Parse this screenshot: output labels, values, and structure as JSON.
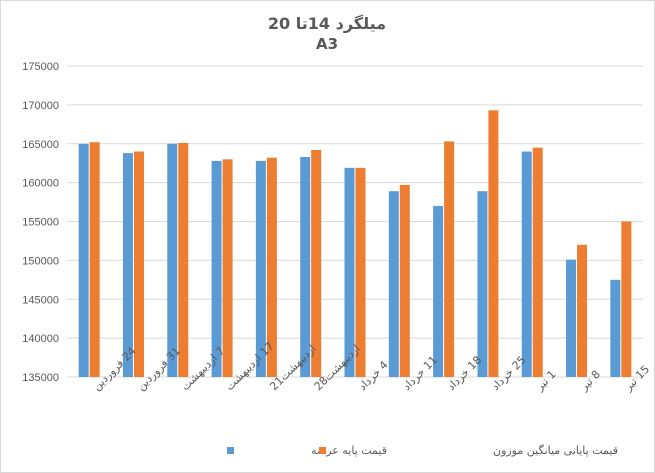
{
  "chart_data": {
    "type": "bar",
    "title": "میلگرد 14تا 20",
    "subtitle": "A3",
    "categories": [
      "24 فروردین",
      "31 فروردین",
      "7 اردیبهشت",
      "17 اردیبهشت",
      "اردیبهشت21",
      "اردیبهشت28",
      "4 خرداد",
      "11 خرداد",
      "18 خرداد",
      "25 خرداد",
      "1 تیر",
      "8 تیر",
      "15 تیر"
    ],
    "series": [
      {
        "name": "قیمت پایه عرضه",
        "color": "#5B9BD5",
        "values": [
          165000,
          163800,
          165000,
          162800,
          162800,
          163300,
          161900,
          158900,
          157000,
          158900,
          164000,
          150100,
          147500
        ]
      },
      {
        "name": "قیمت پایانی میانگین موزون",
        "color": "#ED7D31",
        "values": [
          165200,
          164000,
          165100,
          163000,
          163200,
          164200,
          161900,
          159700,
          165300,
          169300,
          164500,
          152000,
          155000
        ]
      }
    ],
    "ylim": [
      135000,
      175000
    ],
    "yticks": [
      135000,
      140000,
      145000,
      150000,
      155000,
      160000,
      165000,
      170000,
      175000
    ],
    "grid": true,
    "legend": "bottom"
  }
}
